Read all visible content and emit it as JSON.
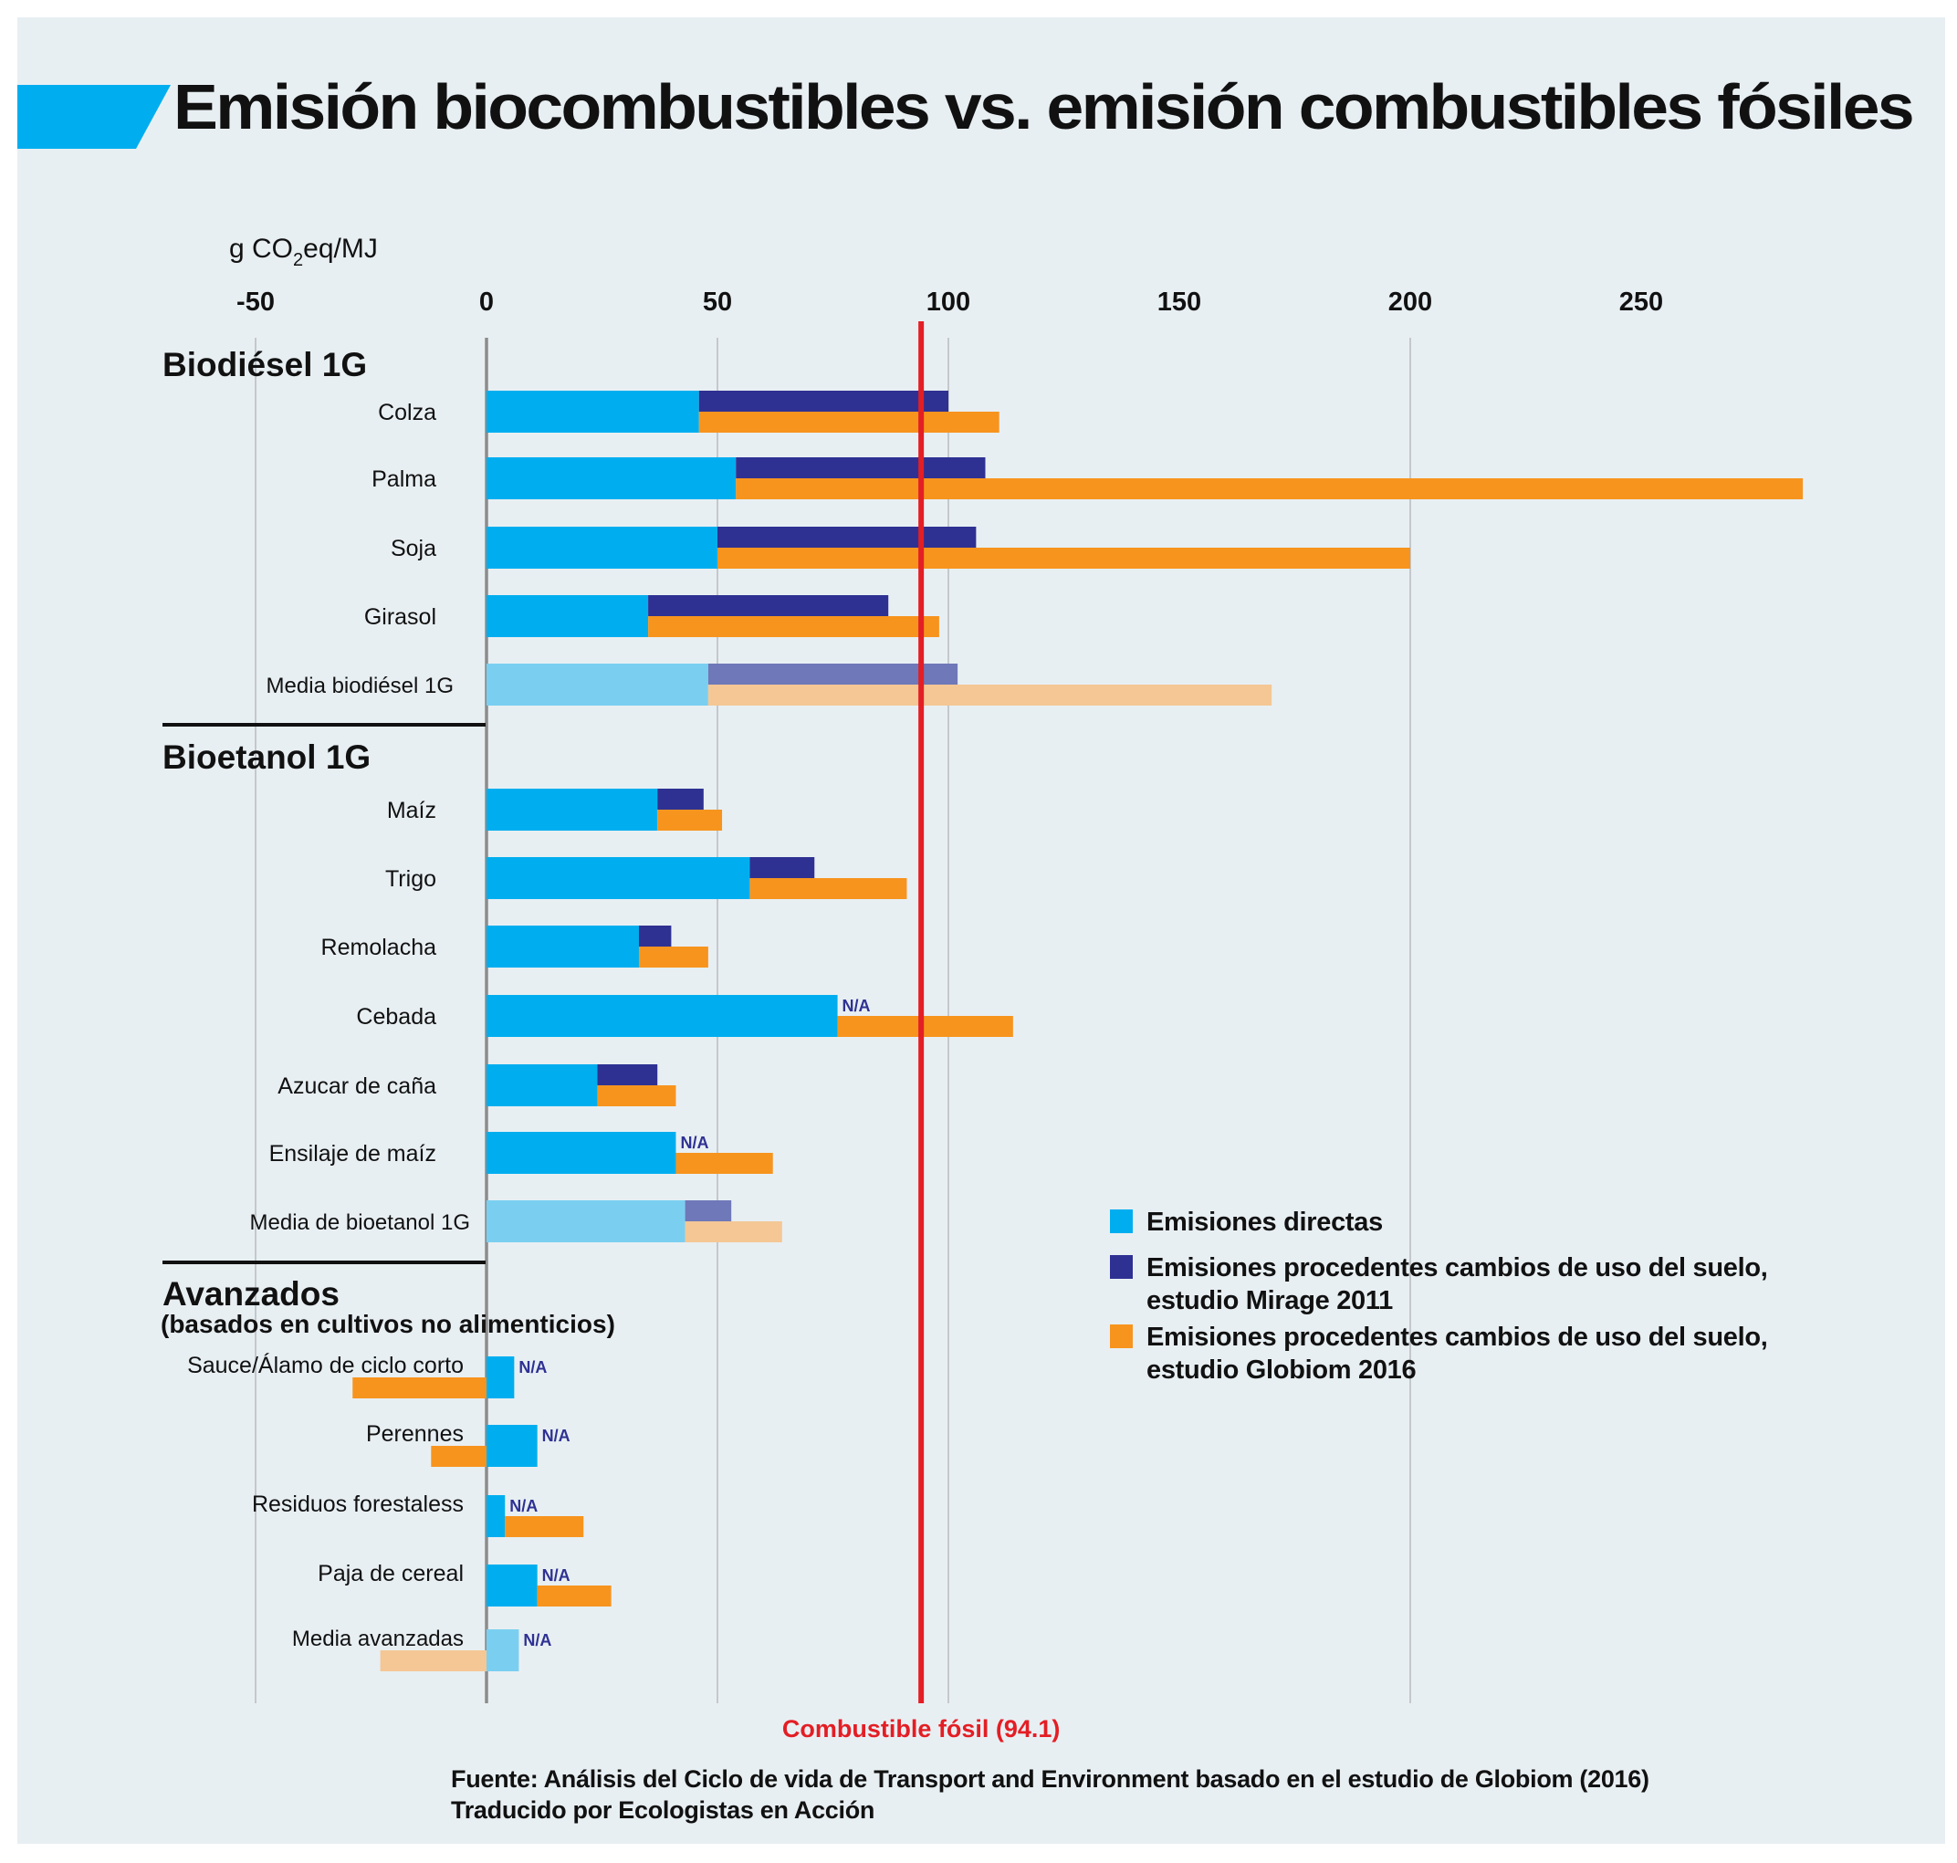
{
  "title": "Emisión biocombustibles vs. emisión combustibles fósiles",
  "colors": {
    "background": "#e8eff3",
    "accent_bar": "#00aeef",
    "direct": "#00aeef",
    "mirage": "#2e3192",
    "globiom": "#f7941e",
    "direct_avg": "#7acff0",
    "mirage_avg": "#6f78b8",
    "globiom_avg": "#f4c795",
    "fossil_line": "#e31e24",
    "na_text": "#2e3192",
    "axis": "#8c8c8c",
    "grid": "#b8bcc0"
  },
  "footer": {
    "line1": "Fuente: Análisis del Ciclo de vida de Transport and Environment basado en el estudio de Globiom (2016)",
    "line2": "Traducido por Ecologistas en Acción"
  },
  "chart_data": {
    "type": "bar",
    "orientation": "horizontal",
    "title": "Emisión biocombustibles vs. emisión combustibles fósiles",
    "xlabel": "g CO2eq/MJ",
    "xlabel_parts": {
      "pre": "g CO",
      "sub": "2",
      "post": "eq/MJ"
    },
    "xlim": [
      -50,
      285
    ],
    "xticks": [
      -50,
      0,
      50,
      100,
      150,
      200,
      250
    ],
    "xtick_labels": [
      "-50",
      "0",
      "50",
      "100",
      "150",
      "200",
      "250"
    ],
    "gridlines": [
      -50,
      50,
      100,
      200
    ],
    "reference_line": {
      "value": 94.1,
      "label": "Combustible fósil (94.1)"
    },
    "legend": {
      "position": "right",
      "entries": [
        {
          "key": "direct",
          "label": "Emisiones directas"
        },
        {
          "key": "mirage",
          "label_line1": "Emisiones procedentes cambios de uso del suelo,",
          "label_line2": "estudio Mirage 2011"
        },
        {
          "key": "globiom",
          "label_line1": "Emisiones procedentes cambios de uso del suelo,",
          "label_line2": "estudio Globiom 2016"
        }
      ]
    },
    "series_note": "Mirage and Globiom values are cumulative totals (direct + land-use change); null = N/A",
    "groups": [
      {
        "name": "Biodiésel 1G",
        "subtitle": "",
        "items": [
          {
            "label": "Colza",
            "direct": 46,
            "mirage_total": 100,
            "globiom_total": 111,
            "average": false
          },
          {
            "label": "Palma",
            "direct": 54,
            "mirage_total": 108,
            "globiom_total": 285,
            "average": false
          },
          {
            "label": "Soja",
            "direct": 50,
            "mirage_total": 106,
            "globiom_total": 200,
            "average": false
          },
          {
            "label": "Girasol",
            "direct": 35,
            "mirage_total": 87,
            "globiom_total": 98,
            "average": false
          },
          {
            "label": "Media biodiésel 1G",
            "direct": 48,
            "mirage_total": 102,
            "globiom_total": 170,
            "average": true
          }
        ]
      },
      {
        "name": "Bioetanol 1G",
        "subtitle": "",
        "items": [
          {
            "label": "Maíz",
            "direct": 37,
            "mirage_total": 47,
            "globiom_total": 51,
            "average": false
          },
          {
            "label": "Trigo",
            "direct": 57,
            "mirage_total": 71,
            "globiom_total": 91,
            "average": false
          },
          {
            "label": "Remolacha",
            "direct": 33,
            "mirage_total": 40,
            "globiom_total": 48,
            "average": false
          },
          {
            "label": "Cebada",
            "direct": 76,
            "mirage_total": null,
            "globiom_total": 114,
            "average": false
          },
          {
            "label": "Azucar de caña",
            "direct": 24,
            "mirage_total": 37,
            "globiom_total": 41,
            "average": false
          },
          {
            "label": "Ensilaje de maíz",
            "direct": 41,
            "mirage_total": null,
            "globiom_total": 62,
            "average": false
          },
          {
            "label": "Media de bioetanol 1G",
            "direct": 43,
            "mirage_total": 53,
            "globiom_total": 64,
            "average": true
          }
        ]
      },
      {
        "name": "Avanzados",
        "subtitle": "(basados en cultivos no alimenticios)",
        "items": [
          {
            "label": "Sauce/Álamo de ciclo corto",
            "direct": 6,
            "mirage_total": null,
            "globiom_luc": -29,
            "average": false
          },
          {
            "label": "Perennes",
            "direct": 11,
            "mirage_total": null,
            "globiom_luc": -12,
            "average": false
          },
          {
            "label": "Residuos forestaless",
            "direct": 4,
            "mirage_total": null,
            "globiom_total": 21,
            "average": false
          },
          {
            "label": "Paja de cereal",
            "direct": 11,
            "mirage_total": null,
            "globiom_total": 27,
            "average": false
          },
          {
            "label": "Media avanzadas",
            "direct": 7,
            "mirage_total": null,
            "globiom_luc": -23,
            "average": true
          }
        ]
      }
    ],
    "na_label": "N/A"
  }
}
